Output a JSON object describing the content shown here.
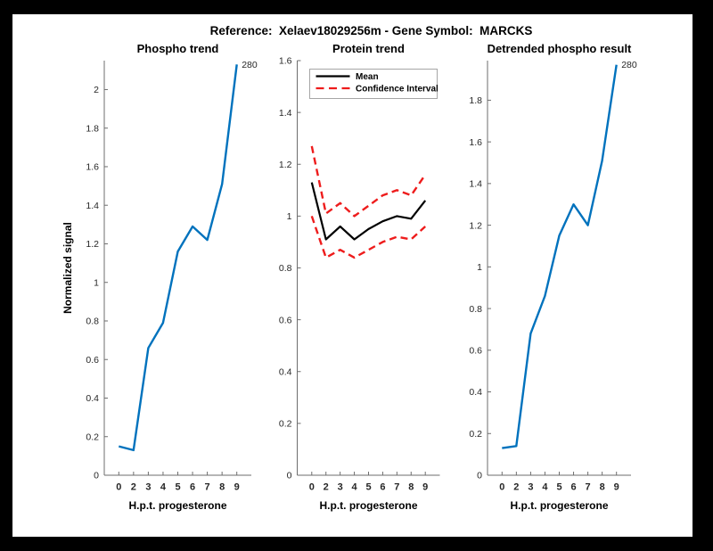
{
  "window": {
    "background": "#000000",
    "canvas_background": "#ffffff"
  },
  "header": {
    "title": "Reference:  Xelaev18029256m - Gene Symbol:  MARCKS"
  },
  "colors": {
    "trend_blue": "#0072BD",
    "ci_red": "#ee1c1c",
    "mean_black": "#000000",
    "axis_gray": "#6e6e6e",
    "tick_text": "#262626",
    "legend_border": "#a6a6a6"
  },
  "chart_data": [
    {
      "type": "line",
      "title": "Phospho trend",
      "xlabel": "H.p.t. progesterone",
      "ylabel": "Normalized signal",
      "x_ticklabels": [
        "0",
        "2",
        "3",
        "4",
        "5",
        "6",
        "7",
        "8",
        "9"
      ],
      "yticks": [
        "0",
        "0.2",
        "0.4",
        "0.6",
        "0.8",
        "1",
        "1.2",
        "1.4",
        "1.6",
        "1.8",
        "2"
      ],
      "ylim": [
        0,
        2.15
      ],
      "grid": false,
      "legend": null,
      "series": [
        {
          "name": "phospho-trend",
          "color": "#0072BD",
          "dash": false,
          "width": 2.4,
          "values": [
            0.15,
            0.13,
            0.66,
            0.79,
            1.16,
            1.29,
            1.22,
            1.51,
            2.13
          ]
        }
      ],
      "annotation": {
        "text": "280",
        "series": 0,
        "position": "last-point"
      }
    },
    {
      "type": "line",
      "title": "Protein trend",
      "xlabel": "H.p.t. progesterone",
      "ylabel": null,
      "x_ticklabels": [
        "0",
        "2",
        "3",
        "4",
        "5",
        "6",
        "7",
        "8",
        "9"
      ],
      "yticks": [
        "0",
        "0.2",
        "0.4",
        "0.6",
        "0.8",
        "1",
        "1.2",
        "1.4",
        "1.6"
      ],
      "ylim": [
        0,
        1.6
      ],
      "grid": false,
      "legend": {
        "position": "northwest",
        "entries": [
          {
            "label": "Mean",
            "color": "#000000",
            "dash": false
          },
          {
            "label": "Confidence Interval",
            "color": "#ee1c1c",
            "dash": true
          }
        ]
      },
      "series": [
        {
          "name": "mean",
          "color": "#000000",
          "dash": false,
          "width": 2.2,
          "values": [
            1.13,
            0.91,
            0.96,
            0.91,
            0.95,
            0.98,
            1.0,
            0.99,
            1.06
          ]
        },
        {
          "name": "ci-upper",
          "color": "#ee1c1c",
          "dash": true,
          "width": 2.4,
          "values": [
            1.27,
            1.01,
            1.05,
            1.0,
            1.04,
            1.08,
            1.1,
            1.08,
            1.16
          ]
        },
        {
          "name": "ci-lower",
          "color": "#ee1c1c",
          "dash": true,
          "width": 2.4,
          "values": [
            1.0,
            0.84,
            0.87,
            0.84,
            0.87,
            0.9,
            0.92,
            0.91,
            0.96
          ]
        }
      ],
      "annotation": null
    },
    {
      "type": "line",
      "title": "Detrended phospho result",
      "xlabel": "H.p.t. progesterone",
      "ylabel": null,
      "x_ticklabels": [
        "0",
        "2",
        "3",
        "4",
        "5",
        "6",
        "7",
        "8",
        "9"
      ],
      "yticks": [
        "0",
        "0.2",
        "0.4",
        "0.6",
        "0.8",
        "1",
        "1.2",
        "1.4",
        "1.6",
        "1.8"
      ],
      "ylim": [
        0,
        1.99
      ],
      "grid": false,
      "legend": null,
      "series": [
        {
          "name": "detrended-phospho",
          "color": "#0072BD",
          "dash": false,
          "width": 2.4,
          "values": [
            0.13,
            0.14,
            0.68,
            0.86,
            1.15,
            1.3,
            1.2,
            1.51,
            1.97
          ]
        }
      ],
      "annotation": {
        "text": "280",
        "series": 0,
        "position": "last-point"
      }
    }
  ]
}
